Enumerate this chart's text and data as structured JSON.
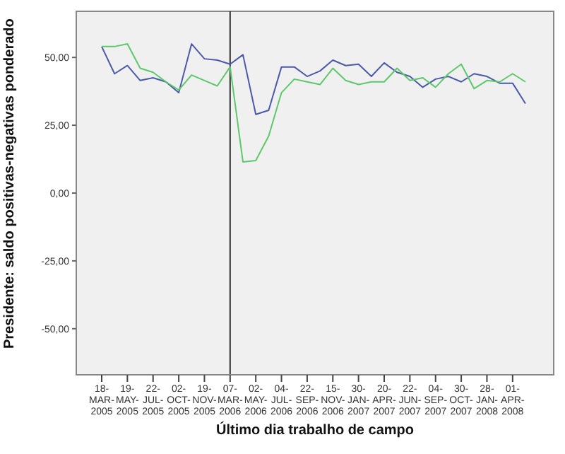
{
  "chart_data": {
    "type": "line",
    "xlabel": "Último dia trabalho de campo",
    "ylabel": "Presidente: saldo positivas-negativas ponderado",
    "categories": [
      "18-MAR-2005",
      null,
      "19-MAY-2005",
      null,
      "22-JUL-2005",
      null,
      "02-OCT-2005",
      null,
      "19-NOV-2005",
      null,
      "07-MAR-2006",
      null,
      "02-MAY-2006",
      null,
      "04-JUL-2006",
      null,
      "22-SEP-2006",
      null,
      "15-NOV-2006",
      null,
      "30-JAN-2007",
      null,
      "20-APR-2007",
      null,
      "22-JUN-2007",
      null,
      "04-SEP-2007",
      null,
      "30-OCT-2007",
      null,
      "28-JAN-2008",
      null,
      "01-APR-2008",
      null
    ],
    "series": [
      {
        "color": "#4b5aa8",
        "values": [
          54,
          44,
          47,
          41.5,
          42.5,
          41,
          37,
          55,
          49.5,
          49,
          47.5,
          51,
          29,
          30.5,
          46.5,
          46.5,
          43,
          45,
          49,
          47,
          47.5,
          43,
          48,
          44.5,
          43,
          39,
          42,
          43,
          41,
          44,
          43,
          40.5,
          40.5,
          33
        ]
      },
      {
        "color": "#5cc86a",
        "values": [
          54,
          54,
          55,
          46,
          44.5,
          41,
          38,
          43.5,
          41.5,
          39.5,
          46.5,
          11.5,
          12,
          21,
          37,
          42,
          41,
          40,
          46,
          41.5,
          40,
          41,
          41,
          46,
          41.5,
          42.5,
          39,
          44,
          47.5,
          38.5,
          41.5,
          41,
          44,
          41
        ]
      }
    ],
    "ylim": [
      -67,
      67
    ],
    "yticks": [
      {
        "value": -50,
        "label": "-50,00"
      },
      {
        "value": -25,
        "label": "-25,00"
      },
      {
        "value": 0,
        "label": "0,00"
      },
      {
        "value": 25,
        "label": "25,00"
      },
      {
        "value": 50,
        "label": "50,00"
      }
    ],
    "ref_lines": [
      {
        "axis": "x",
        "value": "07-MAR-2006",
        "color": "#333333"
      }
    ],
    "legend": false,
    "marker": "none",
    "line_style": "solid"
  }
}
